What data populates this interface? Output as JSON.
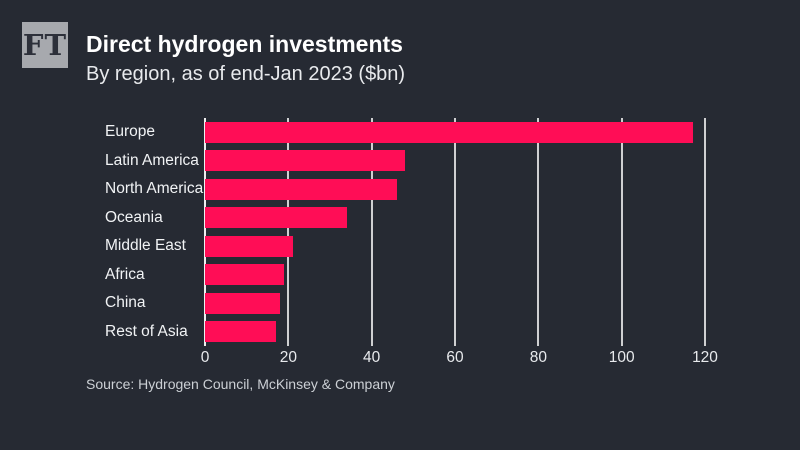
{
  "page": {
    "background": "#262a33"
  },
  "logo": {
    "text": "FT",
    "bg_color": "#a7a9ae",
    "text_color": "#2d303a"
  },
  "header": {
    "title": "Direct hydrogen investments",
    "subtitle": "By region, as of end-Jan 2023 ($bn)"
  },
  "chart_data": {
    "type": "bar",
    "orientation": "horizontal",
    "title": "Direct hydrogen investments",
    "subtitle": "By region, as of end-Jan 2023 ($bn)",
    "categories": [
      "Europe",
      "Latin America",
      "North America",
      "Oceania",
      "Middle East",
      "Africa",
      "China",
      "Rest of Asia"
    ],
    "values": [
      117,
      48,
      46,
      34,
      21,
      19,
      18,
      17
    ],
    "xlabel": "",
    "ylabel": "",
    "xlim": [
      0,
      120
    ],
    "xticks": [
      0,
      20,
      40,
      60,
      80,
      100,
      120
    ],
    "grid": true,
    "legend": false,
    "bar_color": "#ff0d56",
    "gridline_color": "#c9cdd2",
    "background_color": "#262a33"
  },
  "source": {
    "label": "Source: Hydrogen Council, McKinsey & Company"
  }
}
